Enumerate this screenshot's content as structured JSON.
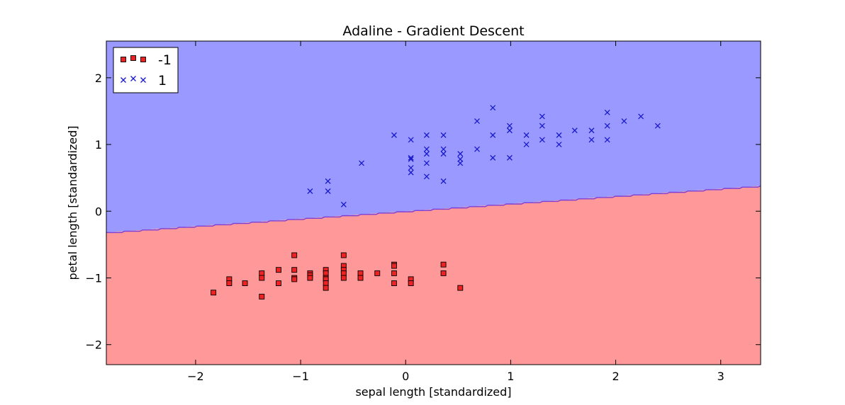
{
  "chart_data": {
    "type": "scatter",
    "title": "Adaline - Gradient Descent",
    "xlabel": "sepal length [standardized]",
    "ylabel": "petal length [standardized]",
    "xlim": [
      -2.85,
      3.38
    ],
    "ylim": [
      -2.3,
      2.55
    ],
    "xticks": [
      {
        "value": -2,
        "label": "−2"
      },
      {
        "value": -1,
        "label": "−1"
      },
      {
        "value": 0,
        "label": "0"
      },
      {
        "value": 1,
        "label": "1"
      },
      {
        "value": 2,
        "label": "2"
      },
      {
        "value": 3,
        "label": "3"
      }
    ],
    "yticks": [
      {
        "value": -2,
        "label": "−2"
      },
      {
        "value": -1,
        "label": "−1"
      },
      {
        "value": 0,
        "label": "0"
      },
      {
        "value": 1,
        "label": "1"
      },
      {
        "value": 2,
        "label": "2"
      }
    ],
    "grid": false,
    "legend_position": "top-left",
    "decision_boundary": {
      "x": [
        -2.85,
        3.38
      ],
      "y": [
        -0.32,
        0.38
      ],
      "below_class": "-1",
      "above_class": "1",
      "color_below": "#ff9999",
      "color_above": "#9999ff",
      "line_color": "#7b3fd6"
    },
    "series": [
      {
        "name": "-1",
        "marker": "square",
        "color": "#ee2222",
        "points": [
          [
            -1.83,
            -1.22
          ],
          [
            -1.68,
            -1.02
          ],
          [
            -1.68,
            -1.08
          ],
          [
            -1.53,
            -1.08
          ],
          [
            -1.37,
            -0.93
          ],
          [
            -1.37,
            -1.0
          ],
          [
            -1.37,
            -1.28
          ],
          [
            -1.21,
            -0.88
          ],
          [
            -1.21,
            -1.08
          ],
          [
            -1.06,
            -0.66
          ],
          [
            -1.06,
            -0.88
          ],
          [
            -1.06,
            -1.0
          ],
          [
            -1.06,
            -1.02
          ],
          [
            -0.91,
            -0.93
          ],
          [
            -0.91,
            -0.96
          ],
          [
            -0.91,
            -1.0
          ],
          [
            -0.76,
            -0.88
          ],
          [
            -0.76,
            -0.93
          ],
          [
            -0.76,
            -1.0
          ],
          [
            -0.76,
            -1.02
          ],
          [
            -0.76,
            -1.08
          ],
          [
            -0.76,
            -1.15
          ],
          [
            -0.59,
            -0.66
          ],
          [
            -0.59,
            -0.82
          ],
          [
            -0.59,
            -0.88
          ],
          [
            -0.59,
            -0.93
          ],
          [
            -0.59,
            -1.0
          ],
          [
            -0.43,
            -0.93
          ],
          [
            -0.43,
            -1.0
          ],
          [
            -0.27,
            -0.93
          ],
          [
            -0.11,
            -0.8
          ],
          [
            -0.11,
            -0.82
          ],
          [
            -0.11,
            -0.93
          ],
          [
            -0.11,
            -1.08
          ],
          [
            0.05,
            -1.02
          ],
          [
            0.05,
            -1.08
          ],
          [
            0.36,
            -0.8
          ],
          [
            0.36,
            -0.93
          ],
          [
            0.52,
            -1.15
          ]
        ]
      },
      {
        "name": "1",
        "marker": "x",
        "color": "#1a1acc",
        "points": [
          [
            -0.91,
            0.3
          ],
          [
            -0.74,
            0.45
          ],
          [
            -0.74,
            0.3
          ],
          [
            -0.59,
            0.1
          ],
          [
            -0.42,
            0.72
          ],
          [
            -0.11,
            1.14
          ],
          [
            0.05,
            1.07
          ],
          [
            0.05,
            0.8
          ],
          [
            0.05,
            0.78
          ],
          [
            0.05,
            0.65
          ],
          [
            0.05,
            0.58
          ],
          [
            0.2,
            1.14
          ],
          [
            0.2,
            0.93
          ],
          [
            0.2,
            0.86
          ],
          [
            0.2,
            0.72
          ],
          [
            0.2,
            0.52
          ],
          [
            0.36,
            1.14
          ],
          [
            0.36,
            0.93
          ],
          [
            0.36,
            0.86
          ],
          [
            0.36,
            0.45
          ],
          [
            0.52,
            0.86
          ],
          [
            0.52,
            0.78
          ],
          [
            0.52,
            0.72
          ],
          [
            0.68,
            1.35
          ],
          [
            0.68,
            0.93
          ],
          [
            0.83,
            1.55
          ],
          [
            0.83,
            1.14
          ],
          [
            0.83,
            0.8
          ],
          [
            0.99,
            1.28
          ],
          [
            0.99,
            1.21
          ],
          [
            0.99,
            0.8
          ],
          [
            1.15,
            1.14
          ],
          [
            1.15,
            1.0
          ],
          [
            1.3,
            1.42
          ],
          [
            1.3,
            1.28
          ],
          [
            1.3,
            1.07
          ],
          [
            1.46,
            1.14
          ],
          [
            1.46,
            1.0
          ],
          [
            1.61,
            1.21
          ],
          [
            1.77,
            1.21
          ],
          [
            1.77,
            1.07
          ],
          [
            1.92,
            1.48
          ],
          [
            1.92,
            1.28
          ],
          [
            1.92,
            1.07
          ],
          [
            2.08,
            1.35
          ],
          [
            2.24,
            1.42
          ],
          [
            2.4,
            1.28
          ]
        ]
      }
    ]
  }
}
